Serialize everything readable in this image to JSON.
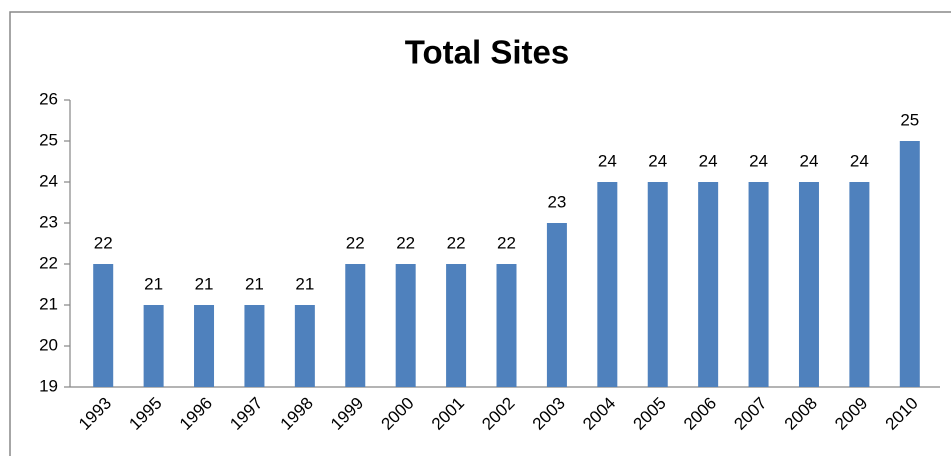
{
  "chart_data": {
    "type": "bar",
    "title": "Total Sites",
    "categories": [
      "1993",
      "1995",
      "1996",
      "1997",
      "1998",
      "1999",
      "2000",
      "2001",
      "2002",
      "2003",
      "2004",
      "2005",
      "2006",
      "2007",
      "2008",
      "2009",
      "2010"
    ],
    "values": [
      22,
      21,
      21,
      21,
      21,
      22,
      22,
      22,
      22,
      23,
      24,
      24,
      24,
      24,
      24,
      24,
      25
    ],
    "color": "#4f81bd",
    "ylim": [
      19,
      26
    ],
    "yticks": [
      19,
      20,
      21,
      22,
      23,
      24,
      25,
      26
    ],
    "grid": false
  }
}
